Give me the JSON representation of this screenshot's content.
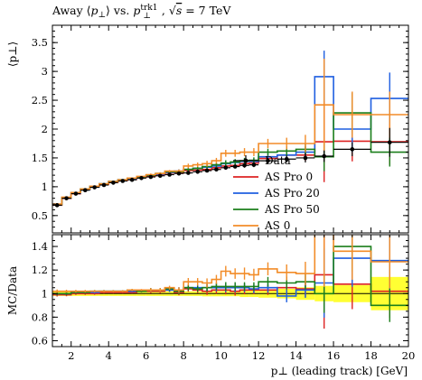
{
  "chart_data": {
    "type": "line",
    "title": "Away ⟨p⊥⟩ vs. p⊥trk1, √s = 7 TeV",
    "title_parts": {
      "lead": "Away ",
      "mean_open": "⟨",
      "mean_var": "p",
      "perp": "⊥",
      "mean_close": "⟩",
      "vs": " vs. ",
      "lead_var": "p",
      "lead_sub": "⊥",
      "lead_sup": "trk1",
      "sep": ", ",
      "root": "√",
      "s": "s",
      "energy": " = 7 TeV"
    },
    "ylabel_main": "⟨p⊥⟩",
    "ylabel_ratio": "MC/Data",
    "xlabel": "p⊥ (leading track) [GeV]",
    "xlim": [
      1,
      20
    ],
    "ylim_main": [
      0.2,
      3.8
    ],
    "ylim_ratio": [
      0.55,
      1.5
    ],
    "xticks": [
      2,
      4,
      6,
      8,
      10,
      12,
      14,
      16,
      18,
      20
    ],
    "yticks_main": [
      0.5,
      1,
      1.5,
      2,
      2.5,
      3,
      3.5
    ],
    "yticks_ratio": [
      0.6,
      0.8,
      1,
      1.2,
      1.4
    ],
    "grid": false,
    "legend_position": "bottom-right of upper panel",
    "colors": {
      "Data": "#000000",
      "AS Pro 0": "#dd2222",
      "AS Pro 20": "#1f5fe0",
      "AS Pro 50": "#1b7f1b",
      "AS 0": "#f28c28",
      "band": "#ffff33"
    },
    "legend": [
      "Data",
      "AS Pro 0",
      "AS Pro 20",
      "AS Pro 50",
      "AS 0"
    ],
    "bins": [
      [
        1.0,
        1.5
      ],
      [
        1.5,
        2.0
      ],
      [
        2.0,
        2.5
      ],
      [
        2.5,
        3.0
      ],
      [
        3.0,
        3.5
      ],
      [
        3.5,
        4.0
      ],
      [
        4.0,
        4.5
      ],
      [
        4.5,
        5.0
      ],
      [
        5.0,
        5.5
      ],
      [
        5.5,
        6.0
      ],
      [
        6.0,
        6.5
      ],
      [
        6.5,
        7.0
      ],
      [
        7.0,
        7.5
      ],
      [
        7.5,
        8.0
      ],
      [
        8.0,
        8.5
      ],
      [
        8.5,
        9.0
      ],
      [
        9.0,
        9.5
      ],
      [
        9.5,
        10.0
      ],
      [
        10.0,
        10.5
      ],
      [
        10.5,
        11.0
      ],
      [
        11.0,
        11.5
      ],
      [
        11.5,
        12.0
      ],
      [
        12.0,
        13.0
      ],
      [
        13.0,
        14.0
      ],
      [
        14.0,
        15.0
      ],
      [
        15.0,
        16.0
      ],
      [
        16.0,
        18.0
      ],
      [
        18.0,
        20.0
      ]
    ],
    "data_y": [
      0.68,
      0.8,
      0.88,
      0.94,
      0.99,
      1.03,
      1.07,
      1.1,
      1.12,
      1.15,
      1.17,
      1.19,
      1.21,
      1.23,
      1.24,
      1.26,
      1.28,
      1.3,
      1.33,
      1.35,
      1.37,
      1.38,
      1.45,
      1.48,
      1.5,
      1.53,
      1.65,
      1.77
    ],
    "data_err": [
      0.01,
      0.01,
      0.01,
      0.01,
      0.01,
      0.01,
      0.01,
      0.01,
      0.01,
      0.01,
      0.01,
      0.01,
      0.02,
      0.02,
      0.02,
      0.02,
      0.03,
      0.03,
      0.03,
      0.03,
      0.04,
      0.04,
      0.05,
      0.06,
      0.08,
      0.1,
      0.12,
      0.25
    ],
    "series": [
      {
        "name": "AS Pro 0",
        "values": [
          0.68,
          0.8,
          0.88,
          0.95,
          1.0,
          1.04,
          1.08,
          1.11,
          1.13,
          1.16,
          1.19,
          1.21,
          1.24,
          1.24,
          1.28,
          1.29,
          1.3,
          1.33,
          1.36,
          1.37,
          1.4,
          1.41,
          1.49,
          1.55,
          1.55,
          1.78,
          1.79,
          1.78
        ],
        "errors": [
          0.01,
          0.01,
          0.01,
          0.01,
          0.01,
          0.01,
          0.01,
          0.01,
          0.01,
          0.01,
          0.02,
          0.02,
          0.02,
          0.03,
          0.03,
          0.03,
          0.04,
          0.04,
          0.05,
          0.05,
          0.05,
          0.05,
          0.06,
          0.08,
          0.1,
          0.7,
          0.35,
          0.4
        ],
        "ratio": [
          0.99,
          0.99,
          1.0,
          1.0,
          1.0,
          1.01,
          1.01,
          1.01,
          1.01,
          1.02,
          1.02,
          1.02,
          1.03,
          1.01,
          1.04,
          1.03,
          1.02,
          1.03,
          1.03,
          1.02,
          1.03,
          1.03,
          1.03,
          1.05,
          1.04,
          1.16,
          1.08,
          1.02
        ]
      },
      {
        "name": "AS Pro 20",
        "values": [
          0.69,
          0.81,
          0.89,
          0.95,
          1.0,
          1.05,
          1.09,
          1.12,
          1.14,
          1.17,
          1.2,
          1.22,
          1.25,
          1.27,
          1.3,
          1.32,
          1.34,
          1.36,
          1.4,
          1.42,
          1.44,
          1.44,
          1.52,
          1.55,
          1.6,
          2.91,
          2.0,
          2.53
        ],
        "errors": [
          0.01,
          0.01,
          0.01,
          0.01,
          0.01,
          0.01,
          0.01,
          0.01,
          0.01,
          0.01,
          0.02,
          0.02,
          0.02,
          0.03,
          0.03,
          0.03,
          0.04,
          0.04,
          0.05,
          0.05,
          0.05,
          0.05,
          0.06,
          0.08,
          0.1,
          0.45,
          0.4,
          0.45
        ],
        "ratio": [
          1.0,
          1.0,
          1.01,
          1.01,
          1.01,
          1.02,
          1.02,
          1.02,
          1.02,
          1.02,
          1.03,
          1.03,
          1.03,
          1.03,
          1.05,
          1.05,
          1.05,
          1.05,
          1.05,
          1.05,
          1.05,
          1.04,
          1.05,
          0.98,
          1.03,
          1.09,
          1.3,
          1.28
        ]
      },
      {
        "name": "AS Pro 50",
        "values": [
          0.69,
          0.81,
          0.9,
          0.96,
          1.01,
          1.05,
          1.09,
          1.12,
          1.15,
          1.17,
          1.2,
          1.23,
          1.26,
          1.26,
          1.3,
          1.32,
          1.35,
          1.38,
          1.41,
          1.43,
          1.45,
          1.46,
          1.6,
          1.62,
          1.65,
          1.52,
          2.28,
          1.6
        ],
        "errors": [
          0.01,
          0.01,
          0.01,
          0.01,
          0.01,
          0.01,
          0.01,
          0.01,
          0.01,
          0.01,
          0.02,
          0.02,
          0.02,
          0.03,
          0.03,
          0.03,
          0.04,
          0.04,
          0.05,
          0.05,
          0.05,
          0.05,
          0.06,
          0.08,
          0.1,
          0.25,
          0.35,
          0.25
        ],
        "ratio": [
          1.0,
          1.0,
          1.01,
          1.01,
          1.02,
          1.02,
          1.02,
          1.02,
          1.03,
          1.02,
          1.03,
          1.03,
          1.04,
          1.02,
          1.05,
          1.04,
          1.05,
          1.06,
          1.06,
          1.06,
          1.06,
          1.06,
          1.1,
          1.09,
          1.1,
          1.0,
          1.4,
          0.9
        ]
      },
      {
        "name": "AS 0",
        "values": [
          0.7,
          0.82,
          0.9,
          0.96,
          1.01,
          1.05,
          1.09,
          1.12,
          1.15,
          1.18,
          1.21,
          1.23,
          1.27,
          1.27,
          1.36,
          1.38,
          1.4,
          1.45,
          1.58,
          1.58,
          1.6,
          1.6,
          1.75,
          1.75,
          1.75,
          2.42,
          2.25,
          2.25
        ],
        "errors": [
          0.01,
          0.01,
          0.01,
          0.01,
          0.01,
          0.01,
          0.01,
          0.01,
          0.01,
          0.01,
          0.02,
          0.02,
          0.02,
          0.03,
          0.04,
          0.04,
          0.05,
          0.05,
          0.06,
          0.06,
          0.07,
          0.07,
          0.08,
          0.1,
          0.15,
          0.8,
          0.4,
          0.4
        ],
        "ratio": [
          1.02,
          1.02,
          1.02,
          1.02,
          1.02,
          1.02,
          1.02,
          1.02,
          1.03,
          1.03,
          1.03,
          1.03,
          1.05,
          1.03,
          1.1,
          1.1,
          1.09,
          1.12,
          1.19,
          1.17,
          1.17,
          1.16,
          1.21,
          1.18,
          1.17,
          1.58,
          1.36,
          1.27
        ]
      }
    ]
  }
}
